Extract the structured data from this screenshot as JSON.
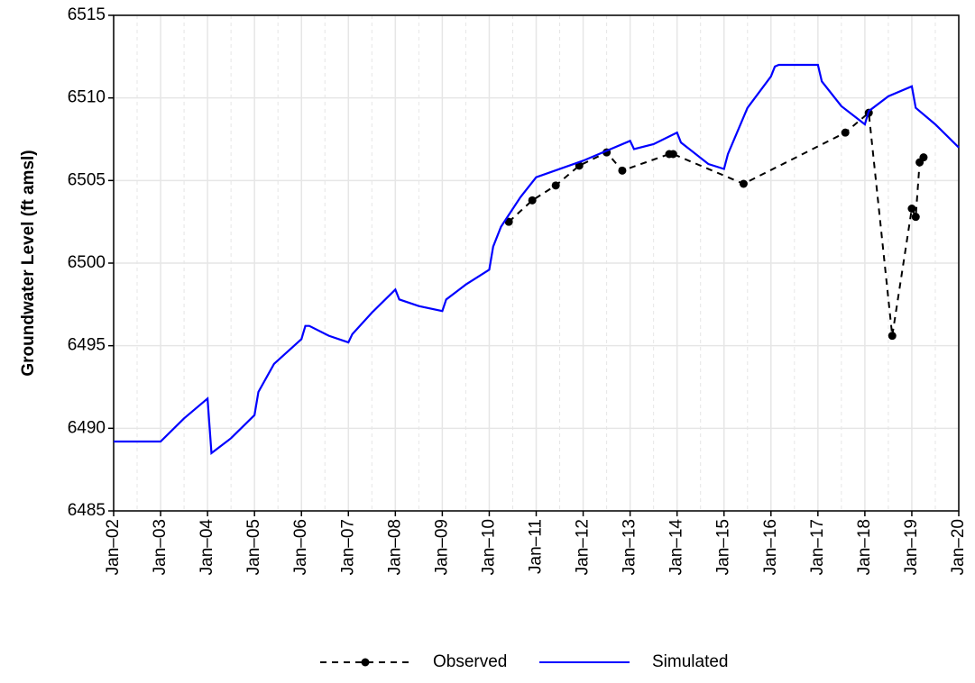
{
  "chart_data": {
    "type": "line",
    "ylabel": "Groundwater Level (ft amsl)",
    "xlim": [
      "2002-01",
      "2020-01"
    ],
    "xticks": [
      {
        "value": "2002-01",
        "label": "Jan–02"
      },
      {
        "value": "2003-01",
        "label": "Jan–03"
      },
      {
        "value": "2004-01",
        "label": "Jan–04"
      },
      {
        "value": "2005-01",
        "label": "Jan–05"
      },
      {
        "value": "2006-01",
        "label": "Jan–06"
      },
      {
        "value": "2007-01",
        "label": "Jan–07"
      },
      {
        "value": "2008-01",
        "label": "Jan–08"
      },
      {
        "value": "2009-01",
        "label": "Jan–09"
      },
      {
        "value": "2010-01",
        "label": "Jan–10"
      },
      {
        "value": "2011-01",
        "label": "Jan–11"
      },
      {
        "value": "2012-01",
        "label": "Jan–12"
      },
      {
        "value": "2013-01",
        "label": "Jan–13"
      },
      {
        "value": "2014-01",
        "label": "Jan–14"
      },
      {
        "value": "2015-01",
        "label": "Jan–15"
      },
      {
        "value": "2016-01",
        "label": "Jan–16"
      },
      {
        "value": "2017-01",
        "label": "Jan–17"
      },
      {
        "value": "2018-01",
        "label": "Jan–18"
      },
      {
        "value": "2019-01",
        "label": "Jan–19"
      },
      {
        "value": "2020-01",
        "label": "Jan–20"
      }
    ],
    "ylim": [
      6485,
      6515
    ],
    "yticks": [
      6485,
      6490,
      6495,
      6500,
      6505,
      6510,
      6515
    ],
    "grid": true,
    "legend": "bottom",
    "series": [
      {
        "name": "Observed",
        "color": "#000000",
        "line_style": "dashed",
        "marker": "circle",
        "x": [
          "2010-06",
          "2010-12",
          "2011-06",
          "2011-12",
          "2012-07",
          "2012-11",
          "2013-11",
          "2013-12",
          "2015-06",
          "2017-08",
          "2018-02",
          "2018-08",
          "2019-01",
          "2019-02",
          "2019-03",
          "2019-04"
        ],
        "values": [
          6502.5,
          6503.8,
          6504.7,
          6505.9,
          6506.7,
          6505.6,
          6506.6,
          6506.6,
          6504.8,
          6507.9,
          6509.1,
          6495.6,
          6503.3,
          6502.8,
          6506.1,
          6506.4
        ]
      },
      {
        "name": "Simulated",
        "color": "#0000ff",
        "line_style": "solid",
        "x": [
          "2002-01",
          "2003-01",
          "2003-07",
          "2004-01",
          "2004-02",
          "2004-07",
          "2005-01",
          "2005-02",
          "2005-06",
          "2006-01",
          "2006-02",
          "2006-03",
          "2006-08",
          "2007-01",
          "2007-02",
          "2007-07",
          "2008-01",
          "2008-02",
          "2008-07",
          "2009-01",
          "2009-02",
          "2009-07",
          "2010-01",
          "2010-02",
          "2010-04",
          "2010-09",
          "2011-01",
          "2012-01",
          "2013-01",
          "2013-02",
          "2013-07",
          "2014-01",
          "2014-02",
          "2014-09",
          "2015-01",
          "2015-02",
          "2015-07",
          "2016-01",
          "2016-02",
          "2016-03",
          "2017-01",
          "2017-02",
          "2017-07",
          "2018-01",
          "2018-02",
          "2018-07",
          "2019-01",
          "2019-02",
          "2019-07",
          "2020-01"
        ],
        "values": [
          6489.2,
          6489.2,
          6490.6,
          6491.8,
          6488.5,
          6489.4,
          6490.8,
          6492.2,
          6493.9,
          6495.4,
          6496.2,
          6496.2,
          6495.6,
          6495.2,
          6495.7,
          6497.0,
          6498.4,
          6497.8,
          6497.4,
          6497.1,
          6497.8,
          6498.7,
          6499.6,
          6501.0,
          6502.2,
          6504.0,
          6505.2,
          6506.2,
          6507.4,
          6506.9,
          6507.2,
          6507.9,
          6507.3,
          6506.0,
          6505.7,
          6506.6,
          6509.4,
          6511.3,
          6511.9,
          6512.0,
          6512.0,
          6511.0,
          6509.5,
          6508.4,
          6509.2,
          6510.1,
          6510.7,
          6509.4,
          6508.4,
          6507.0
        ]
      }
    ]
  }
}
